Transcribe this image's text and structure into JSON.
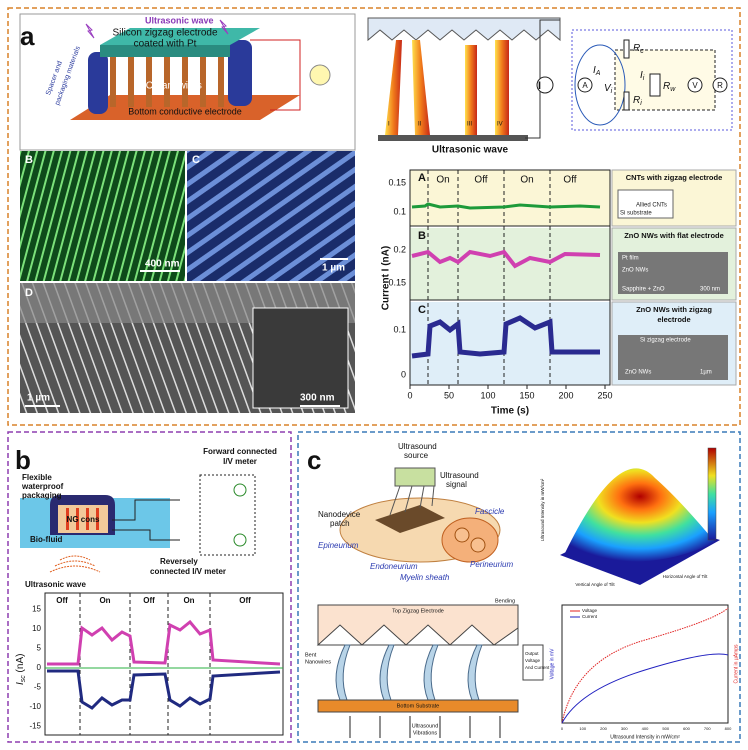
{
  "panel_a": {
    "label": "a",
    "schematic": {
      "wave": "Ultrasonic wave",
      "electrode": [
        "Silicon zigzag electrode",
        "coated with Pt"
      ],
      "spacer": [
        "Spacer and",
        "packaging materials"
      ],
      "nanowires": "ZnO nanowires",
      "bottom": "Bottom conductive electrode"
    },
    "sem": {
      "b": "B",
      "b_scale": "400 nm",
      "c": "C",
      "c_scale": "1 µm",
      "d": "D",
      "d_scale": "1 µm",
      "inset_scale": "300 nm"
    },
    "mechanism": {
      "current": "I",
      "wires": [
        "I",
        "II",
        "III",
        "IV"
      ],
      "wave": "Ultrasonic wave"
    },
    "circuit": {
      "ammeter": "A",
      "voltmeter": "V",
      "meter_r": "R",
      "i_a": {
        "text": "I",
        "sub": "A"
      },
      "v_i": {
        "text": "V",
        "sub": "i"
      },
      "r_c": {
        "text": "R",
        "sub": "c"
      },
      "r_i": {
        "text": "R",
        "sub": "i"
      },
      "r_w": {
        "text": "R",
        "sub": "w"
      },
      "i_i": {
        "text": "I",
        "sub": "i"
      }
    },
    "current_plot": {
      "y_label": "Current I (nA)",
      "x_label": "Time (s)",
      "xticks": [
        0,
        50,
        100,
        150,
        200,
        250
      ],
      "phases": [
        "On",
        "Off",
        "On",
        "Off"
      ],
      "rows": [
        {
          "label": "A",
          "yticks": [
            0.15,
            0.1
          ],
          "title": [
            "CNTs with zigzag electrode"
          ],
          "notes": [
            "Allied CNTs",
            "Si substrate"
          ]
        },
        {
          "label": "B",
          "yticks": [
            0.2,
            0.15
          ],
          "title": [
            "ZnO NWs with flat electrode"
          ],
          "notes": [
            "Pt film",
            "ZnO NWs",
            "Sapphire + ZnO",
            "300 nm"
          ]
        },
        {
          "label": "C",
          "yticks": [
            0.1,
            0
          ],
          "title": [
            "ZnO NWs with zigzag",
            "electrode"
          ],
          "notes": [
            "Si zigzag electrode",
            "ZnO NWs",
            "1µm"
          ]
        }
      ]
    }
  },
  "panel_b": {
    "label": "b",
    "forward": [
      "Forward connected",
      "I/V meter"
    ],
    "packaging": [
      "Flexible",
      "waterproof",
      "packaging"
    ],
    "ng": "NG cons",
    "fluid": "Bio-fluid",
    "wave": "Ultrasonic wave",
    "reverse": [
      "Reversely",
      "connected I/V meter"
    ],
    "plot": {
      "y_label": {
        "text": "I",
        "sub": "sc",
        "unit": " (nA)"
      },
      "yticks": [
        15,
        10,
        5,
        0,
        -5,
        -10,
        -15
      ],
      "phases": [
        "Off",
        "On",
        "Off",
        "On",
        "Off"
      ]
    }
  },
  "panel_c": {
    "label": "c",
    "nerve": {
      "source": [
        "Ultrasound",
        "source"
      ],
      "signal": [
        "Ultrasound",
        "signal"
      ],
      "patch": [
        "Nanodevice",
        "patch"
      ],
      "fascicle": "Fascicle",
      "epineurium": "Epineurium",
      "perineurium": "Perineurium",
      "endoneurium": "Endoneurium",
      "myelin": "Myelin sheath"
    },
    "device": {
      "top": "Top Zigzag Electrode",
      "bending": "Bending",
      "bent": [
        "Bent",
        "Nanowires"
      ],
      "output": [
        "Output",
        "Voltage",
        "And Current"
      ],
      "bottom": "Bottom Substrate",
      "vibrations": [
        "Ultrasound",
        "Vibrations"
      ]
    },
    "surface": {
      "z_label": "Ultrasound Intensity in mW/cm²",
      "x_label": "Vertical Angle of Tilt",
      "y_label": "Horizontal Angle of Tilt"
    },
    "line_plot": {
      "legend": [
        "Voltage",
        "Current"
      ],
      "x_label": "Ultrasound Intensity in mW/cm²",
      "y_label": "Voltage in mV",
      "y2_label": "Current in µAmps",
      "xticks": [
        0,
        100,
        200,
        300,
        400,
        500,
        600,
        700,
        800
      ]
    }
  }
}
